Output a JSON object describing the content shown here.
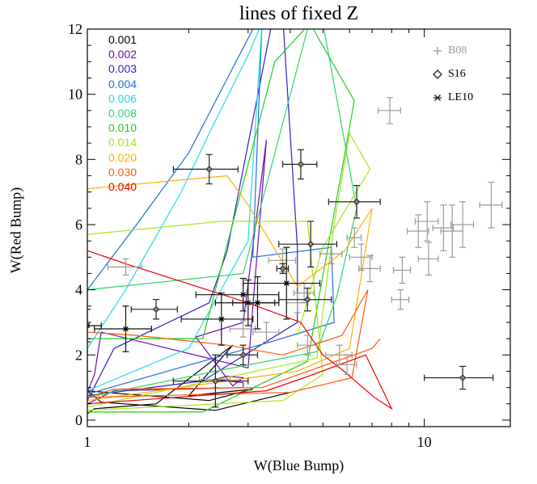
{
  "chart_data": {
    "type": "scatter",
    "title": "lines of fixed Z",
    "xlabel": "W(Blue Bump)",
    "ylabel": "W(Red Bump)",
    "xscale": "log",
    "xlim": [
      1,
      18
    ],
    "ylim": [
      -0.2,
      12
    ],
    "x_ticks": [
      1,
      10
    ],
    "y_ticks": [
      0,
      2,
      4,
      6,
      8,
      10,
      12
    ],
    "grid": false,
    "legend_metallicity": [
      {
        "label": "0.001",
        "color": "#000000"
      },
      {
        "label": "0.002",
        "color": "#6a0dad"
      },
      {
        "label": "0.003",
        "color": "#2e1fcc"
      },
      {
        "label": "0.004",
        "color": "#1f6fe0"
      },
      {
        "label": "0.006",
        "color": "#26d9e0"
      },
      {
        "label": "0.008",
        "color": "#2ed66a"
      },
      {
        "label": "0.010",
        "color": "#22cc22"
      },
      {
        "label": "0.014",
        "color": "#a6e61a"
      },
      {
        "label": "0.020",
        "color": "#ffb000"
      },
      {
        "label": "0.030",
        "color": "#ff5a0a"
      },
      {
        "label": "0.040",
        "color": "#ee0000"
      }
    ],
    "legend_samples": [
      {
        "label": "B08",
        "marker": "plus",
        "color": "#999999"
      },
      {
        "label": "S16",
        "marker": "diamond",
        "color": "#222222"
      },
      {
        "label": "LE10",
        "marker": "asterisk",
        "color": "#222222"
      }
    ],
    "model_lines": [
      {
        "z": "0.001",
        "color": "#000000",
        "points": [
          [
            1.0,
            0.2
          ],
          [
            1.05,
            0.35
          ],
          [
            1.6,
            0.5
          ],
          [
            2.7,
            2.3
          ],
          [
            2.0,
            0.75
          ],
          [
            3.1,
            0.95
          ],
          [
            2.3,
            0.6
          ],
          [
            1.3,
            0.8
          ],
          [
            1.0,
            0.9
          ],
          [
            1.1,
            0.55
          ],
          [
            2.4,
            0.3
          ],
          [
            4.0,
            0.85
          ]
        ]
      },
      {
        "z": "0.002",
        "color": "#6a0dad",
        "points": [
          [
            1.0,
            0.5
          ],
          [
            1.2,
            0.9
          ],
          [
            2.9,
            1.0
          ],
          [
            2.9,
            1.15
          ],
          [
            2.4,
            1.25
          ],
          [
            2.6,
            1.35
          ],
          [
            2.9,
            1.3
          ],
          [
            2.7,
            1.05
          ],
          [
            2.1,
            2.55
          ],
          [
            2.9,
            3.0
          ],
          [
            3.4,
            8.6
          ],
          [
            3.1,
            3.5
          ],
          [
            3.0,
            1.6
          ],
          [
            1.1,
            2.7
          ],
          [
            1.05,
            1.4
          ],
          [
            1.0,
            0.85
          ]
        ]
      },
      {
        "z": "0.003",
        "color": "#2e1fcc",
        "points": [
          [
            1.0,
            0.6
          ],
          [
            1.2,
            2.2
          ],
          [
            2.3,
            3.6
          ],
          [
            2.6,
            5.2
          ],
          [
            3.5,
            12
          ],
          [
            3.8,
            12.4
          ],
          [
            4.2,
            5.3
          ],
          [
            4.2,
            3.0
          ],
          [
            2.2,
            1.2
          ],
          [
            1.0,
            0.75
          ]
        ]
      },
      {
        "z": "0.004",
        "color": "#1f6fe0",
        "points": [
          [
            1.0,
            0.7
          ],
          [
            1.0,
            4.0
          ],
          [
            1.4,
            6.0
          ],
          [
            2.0,
            8.2
          ],
          [
            3.1,
            12
          ],
          [
            3.3,
            12.2
          ],
          [
            3.1,
            5.0
          ],
          [
            5.3,
            5.3
          ],
          [
            5.4,
            3.0
          ],
          [
            3.5,
            2.4
          ],
          [
            1.0,
            0.8
          ]
        ]
      },
      {
        "z": "0.006",
        "color": "#26d9e0",
        "points": [
          [
            1.0,
            0.8
          ],
          [
            1.0,
            2.2
          ],
          [
            1.3,
            4.0
          ],
          [
            1.9,
            7.0
          ],
          [
            2.3,
            8.8
          ],
          [
            3.0,
            11.2
          ],
          [
            3.3,
            12.2
          ],
          [
            3.0,
            5.5
          ],
          [
            2.0,
            2.2
          ],
          [
            1.0,
            0.9
          ]
        ]
      },
      {
        "z": "0.008",
        "color": "#2ed66a",
        "points": [
          [
            1.0,
            0.9
          ],
          [
            1.0,
            4.0
          ],
          [
            1.9,
            4.3
          ],
          [
            2.9,
            4.5
          ],
          [
            4.5,
            12
          ],
          [
            5.0,
            12.2
          ],
          [
            6.3,
            6.5
          ],
          [
            5.5,
            3.8
          ],
          [
            4.8,
            2.1
          ],
          [
            2.4,
            1.5
          ],
          [
            1.0,
            0.7
          ]
        ]
      },
      {
        "z": "0.010",
        "color": "#22cc22",
        "points": [
          [
            1.0,
            0.25
          ],
          [
            2.2,
            0.25
          ],
          [
            4.5,
            1.8
          ],
          [
            6.2,
            9.8
          ],
          [
            4.8,
            11.8
          ],
          [
            4.6,
            12.2
          ],
          [
            3.6,
            11.0
          ],
          [
            2.2,
            2.5
          ],
          [
            1.0,
            2.5
          ]
        ]
      },
      {
        "z": "0.014",
        "color": "#a6e61a",
        "points": [
          [
            1.0,
            5.7
          ],
          [
            2.5,
            6.1
          ],
          [
            4.5,
            6.1
          ],
          [
            5.0,
            1.4
          ],
          [
            3.8,
            0.6
          ],
          [
            1.0,
            0.3
          ],
          [
            1.0,
            0.4
          ],
          [
            4.8,
            1.9
          ],
          [
            5.4,
            6.0
          ],
          [
            6.0,
            8.8
          ],
          [
            6.9,
            7.7
          ],
          [
            5.0,
            5.3
          ],
          [
            4.2,
            2.6
          ]
        ]
      },
      {
        "z": "0.020",
        "color": "#ffb000",
        "points": [
          [
            1.0,
            7.1
          ],
          [
            2.6,
            7.5
          ],
          [
            3.0,
            6.6
          ],
          [
            4.2,
            4.1
          ],
          [
            5.8,
            5.2
          ],
          [
            7.0,
            6.5
          ],
          [
            6.0,
            2.2
          ],
          [
            4.2,
            1.5
          ],
          [
            1.0,
            0.6
          ]
        ]
      },
      {
        "z": "0.030",
        "color": "#ff5a0a",
        "points": [
          [
            1.0,
            2.7
          ],
          [
            1.4,
            2.6
          ],
          [
            2.6,
            2.3
          ],
          [
            3.8,
            2.0
          ],
          [
            5.7,
            2.6
          ],
          [
            6.8,
            4.0
          ],
          [
            6.1,
            1.3
          ],
          [
            4.0,
            0.85
          ],
          [
            1.0,
            0.7
          ],
          [
            1.2,
            0.95
          ],
          [
            3.3,
            1.0
          ],
          [
            7.0,
            2.2
          ],
          [
            7.4,
            2.5
          ]
        ]
      },
      {
        "z": "0.040",
        "color": "#ee0000",
        "points": [
          [
            1.0,
            5.2
          ],
          [
            1.3,
            4.8
          ],
          [
            3.0,
            3.6
          ],
          [
            4.3,
            3.0
          ],
          [
            5.0,
            2.0
          ],
          [
            5.7,
            1.55
          ],
          [
            7.1,
            0.7
          ],
          [
            8.0,
            0.35
          ],
          [
            6.7,
            2.0
          ],
          [
            4.4,
            1.3
          ],
          [
            3.4,
            0.9
          ],
          [
            1.0,
            0.5
          ]
        ]
      }
    ],
    "B08": [
      {
        "x": 1.3,
        "y": 4.7,
        "xerr": 0.15,
        "yerr": 0.25
      },
      {
        "x": 2.4,
        "y": 1.25,
        "xerr": 0.25,
        "yerr": 0.25
      },
      {
        "x": 2.9,
        "y": 2.8,
        "xerr": 0.25,
        "yerr": 0.25
      },
      {
        "x": 3.4,
        "y": 2.7,
        "xerr": 0.3,
        "yerr": 0.3
      },
      {
        "x": 3.8,
        "y": 4.9,
        "xerr": 0.35,
        "yerr": 0.35
      },
      {
        "x": 4.2,
        "y": 3.6,
        "xerr": 0.3,
        "yerr": 0.3
      },
      {
        "x": 4.4,
        "y": 3.9,
        "xerr": 0.3,
        "yerr": 0.3
      },
      {
        "x": 4.5,
        "y": 2.3,
        "xerr": 0.3,
        "yerr": 0.3
      },
      {
        "x": 5.3,
        "y": 5.1,
        "xerr": 0.4,
        "yerr": 0.3
      },
      {
        "x": 5.6,
        "y": 2.0,
        "xerr": 0.5,
        "yerr": 0.3
      },
      {
        "x": 5.9,
        "y": 1.7,
        "xerr": 0.4,
        "yerr": 0.3
      },
      {
        "x": 6.2,
        "y": 5.6,
        "xerr": 0.3,
        "yerr": 0.3
      },
      {
        "x": 6.5,
        "y": 5.0,
        "xerr": 0.5,
        "yerr": 0.4
      },
      {
        "x": 6.9,
        "y": 4.65,
        "xerr": 0.5,
        "yerr": 0.4
      },
      {
        "x": 7.9,
        "y": 9.5,
        "xerr": 0.6,
        "yerr": 0.4
      },
      {
        "x": 8.5,
        "y": 3.7,
        "xerr": 0.5,
        "yerr": 0.3
      },
      {
        "x": 8.6,
        "y": 4.6,
        "xerr": 0.5,
        "yerr": 0.4
      },
      {
        "x": 9.6,
        "y": 5.8,
        "xerr": 0.7,
        "yerr": 0.5
      },
      {
        "x": 10.2,
        "y": 6.1,
        "xerr": 0.8,
        "yerr": 0.6
      },
      {
        "x": 10.3,
        "y": 4.95,
        "xerr": 0.7,
        "yerr": 0.5
      },
      {
        "x": 11.4,
        "y": 5.9,
        "xerr": 0.8,
        "yerr": 0.7
      },
      {
        "x": 12.1,
        "y": 5.8,
        "xerr": 0.9,
        "yerr": 0.8
      },
      {
        "x": 13.0,
        "y": 6.0,
        "xerr": 1.0,
        "yerr": 0.7
      },
      {
        "x": 15.8,
        "y": 6.6,
        "xerr": 1.2,
        "yerr": 0.7
      }
    ],
    "S16": [
      {
        "x": 1.6,
        "y": 3.4,
        "xerr": 0.25,
        "yerr": 0.3
      },
      {
        "x": 2.3,
        "y": 7.7,
        "xerr": 0.5,
        "yerr": 0.45
      },
      {
        "x": 2.4,
        "y": 1.2,
        "xerr": 0.6,
        "yerr": 0.8
      },
      {
        "x": 2.9,
        "y": 2.0,
        "xerr": 0.3,
        "yerr": 0.3
      },
      {
        "x": 3.8,
        "y": 4.65,
        "xerr": 0.15,
        "yerr": 0.15
      },
      {
        "x": 4.3,
        "y": 7.85,
        "xerr": 0.5,
        "yerr": 0.45
      },
      {
        "x": 4.5,
        "y": 3.7,
        "xerr": 0.8,
        "yerr": 0.35
      },
      {
        "x": 4.6,
        "y": 5.4,
        "xerr": 0.9,
        "yerr": 0.7
      },
      {
        "x": 6.3,
        "y": 6.7,
        "xerr": 1.1,
        "yerr": 0.5
      },
      {
        "x": 13.0,
        "y": 1.3,
        "xerr": 3.0,
        "yerr": 0.35
      }
    ],
    "LE10": [
      {
        "x": 1.0,
        "y": 2.9,
        "xerr": 0.1,
        "yerr": 0.5
      },
      {
        "x": 1.3,
        "y": 2.8,
        "xerr": 0.25,
        "yerr": 0.7
      },
      {
        "x": 2.5,
        "y": 3.1,
        "xerr": 0.6,
        "yerr": 0.8
      },
      {
        "x": 2.9,
        "y": 3.85,
        "xerr": 0.8,
        "yerr": 0.5
      },
      {
        "x": 3.0,
        "y": 3.6,
        "xerr": 0.6,
        "yerr": 0.7
      },
      {
        "x": 3.2,
        "y": 3.6,
        "xerr": 0.5,
        "yerr": 0.8
      },
      {
        "x": 3.9,
        "y": 4.2,
        "xerr": 1.0,
        "yerr": 1.1
      }
    ]
  }
}
